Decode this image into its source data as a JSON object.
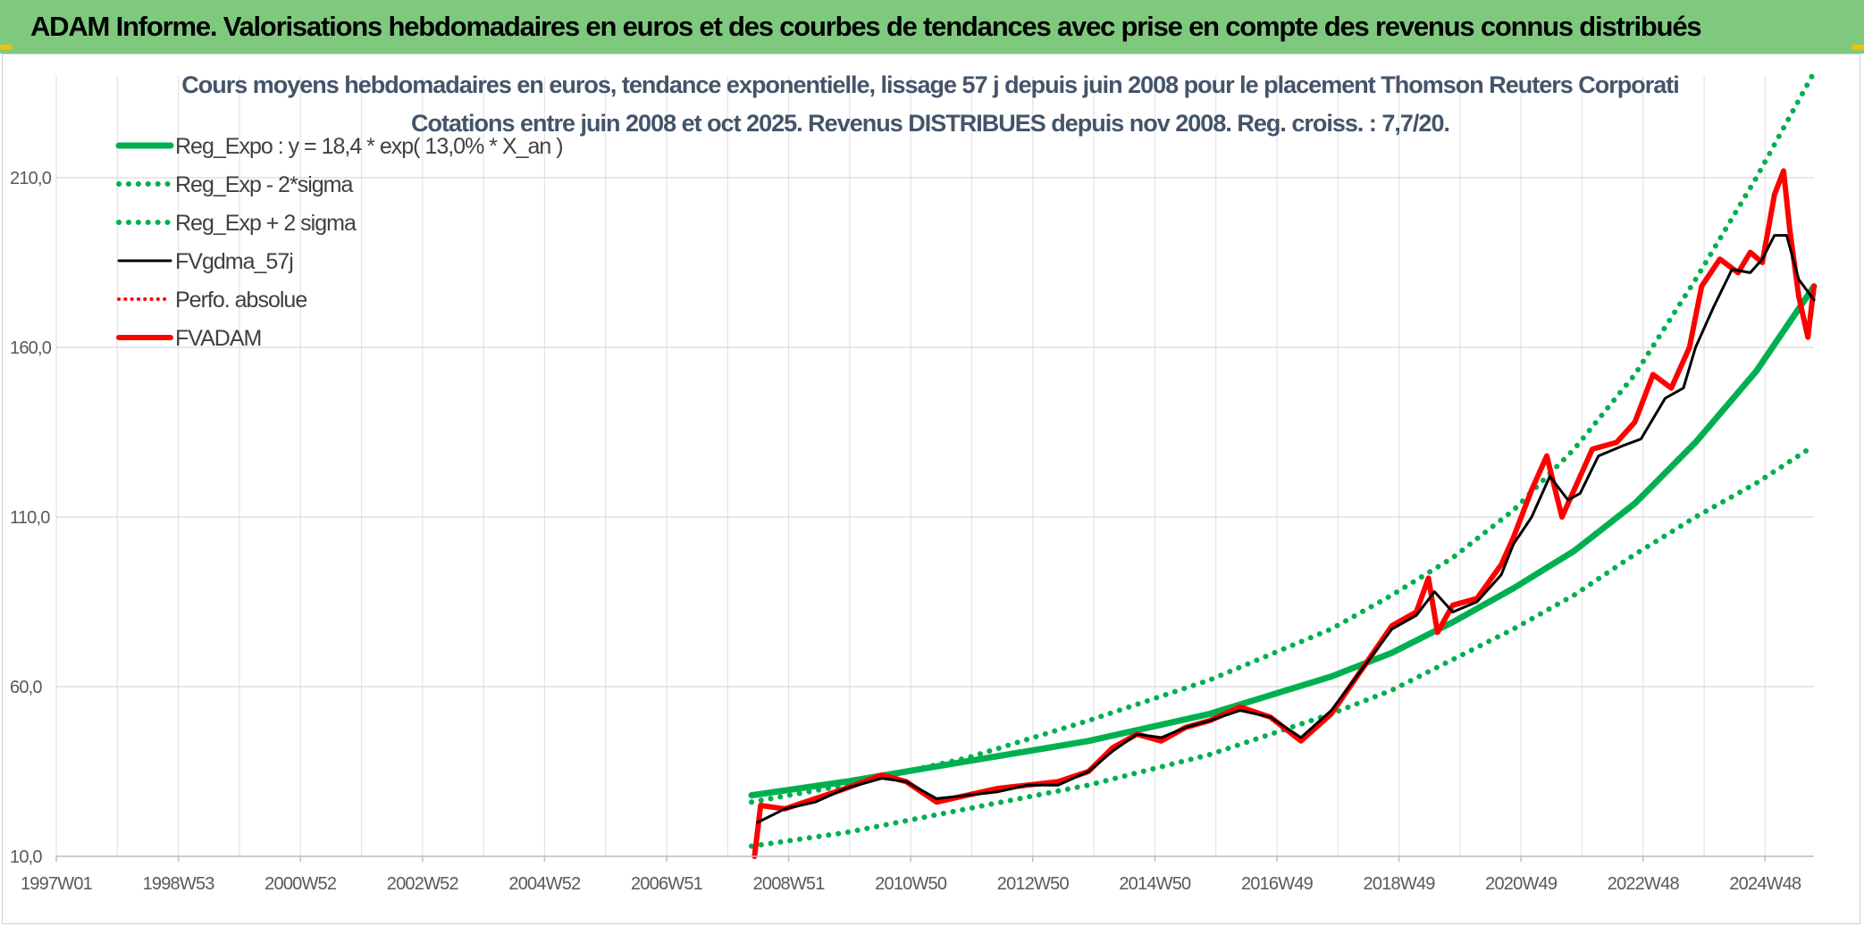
{
  "banner": {
    "title": "ADAM Informe. Valorisations hebdomadaires en euros et des courbes de tendances avec prise en compte des revenus connus distribués",
    "color": "#7fc97f"
  },
  "chart_data": {
    "type": "line",
    "title": "Cours moyens hebdomadaires en euros, tendance exponentielle, lissage 57 j depuis juin 2008 pour le placement Thomson Reuters Corporati",
    "subtitle": "Cotations entre juin 2008 et oct 2025. Revenus DISTRIBUES depuis nov 2008. Reg. croiss. : 7,7/20.",
    "xlabel": "",
    "ylabel": "",
    "x_ticks": [
      "1997W01",
      "1998W53",
      "2000W52",
      "2002W52",
      "2004W52",
      "2006W51",
      "2008W51",
      "2010W50",
      "2012W50",
      "2014W50",
      "2016W49",
      "2018W49",
      "2020W49",
      "2022W48",
      "2024W48"
    ],
    "x_range": [
      1997.0,
      2025.95
    ],
    "y_ticks": [
      "10,0",
      "60,0",
      "110,0",
      "160,0",
      "210,0"
    ],
    "ylim": [
      10,
      240
    ],
    "grid": true,
    "legend_position": "top-left",
    "series": [
      {
        "name": "Reg_Expo : y = 18,4 * exp( 13,0% *  X_an )",
        "style": "solid",
        "color": "#00b050",
        "width": 7,
        "x": [
          2008.45,
          2010.0,
          2012.0,
          2014.0,
          2016.0,
          2018.0,
          2019.0,
          2020.0,
          2021.0,
          2022.0,
          2023.0,
          2024.0,
          2025.0,
          2025.95
        ],
        "y": [
          28,
          32,
          38,
          44,
          52,
          63,
          70,
          79,
          89,
          100,
          114,
          132,
          153,
          178
        ]
      },
      {
        "name": "Reg_Exp - 2*sigma",
        "style": "dotted",
        "color": "#00b050",
        "width": 6,
        "x": [
          2008.45,
          2010.0,
          2012.0,
          2014.0,
          2016.0,
          2018.0,
          2019.0,
          2020.0,
          2021.0,
          2022.0,
          2023.0,
          2024.0,
          2025.0,
          2025.95
        ],
        "y": [
          13,
          17,
          24,
          31,
          40,
          52,
          59,
          68,
          77,
          87,
          99,
          110,
          120,
          131
        ]
      },
      {
        "name": "Reg_Exp + 2 sigma",
        "style": "dotted",
        "color": "#00b050",
        "width": 6,
        "x": [
          2008.45,
          2010.0,
          2012.0,
          2014.0,
          2016.0,
          2018.0,
          2019.0,
          2020.0,
          2021.0,
          2022.0,
          2023.0,
          2024.0,
          2025.0,
          2025.95
        ],
        "y": [
          26,
          31,
          39,
          50,
          62,
          77,
          87,
          98,
          112,
          130,
          152,
          180,
          210,
          241
        ]
      },
      {
        "name": "FVgdma_57j",
        "style": "solid",
        "color": "#000000",
        "width": 3,
        "x": [
          2008.55,
          2009.0,
          2009.5,
          2010.0,
          2010.6,
          2011.0,
          2011.5,
          2012.0,
          2012.5,
          2013.0,
          2013.5,
          2014.0,
          2014.4,
          2014.8,
          2015.2,
          2015.6,
          2016.0,
          2016.5,
          2017.0,
          2017.5,
          2018.0,
          2018.5,
          2019.0,
          2019.4,
          2019.7,
          2020.0,
          2020.4,
          2020.8,
          2021.0,
          2021.3,
          2021.6,
          2021.9,
          2022.1,
          2022.4,
          2022.8,
          2023.1,
          2023.5,
          2023.8,
          2024.0,
          2024.3,
          2024.6,
          2024.9,
          2025.1,
          2025.3,
          2025.5,
          2025.7,
          2025.95
        ],
        "y": [
          20,
          24,
          26,
          30,
          33,
          32,
          27,
          28,
          29,
          31,
          31,
          35,
          41,
          46,
          45,
          48,
          50,
          53,
          51,
          45,
          53,
          65,
          77,
          81,
          88,
          82,
          85,
          93,
          102,
          110,
          122,
          115,
          117,
          128,
          131,
          133,
          145,
          148,
          160,
          172,
          183,
          182,
          186,
          193,
          193,
          180,
          174
        ]
      },
      {
        "name": "Perfo. absolue",
        "style": "dotted",
        "color": "#ff0000",
        "width": 4,
        "x": [
          2008.5,
          2008.6,
          2009.0,
          2009.5,
          2010.0,
          2010.6,
          2011.0,
          2011.5,
          2012.0,
          2012.5,
          2013.0,
          2013.5,
          2014.0,
          2014.4,
          2014.8,
          2015.2,
          2015.6,
          2016.0,
          2016.5,
          2017.0,
          2017.5,
          2018.0,
          2018.5,
          2019.0,
          2019.4,
          2019.6,
          2019.75,
          2020.0,
          2020.4,
          2020.8,
          2021.0,
          2021.3,
          2021.55,
          2021.8,
          2022.0,
          2022.3,
          2022.7,
          2023.0,
          2023.3,
          2023.6,
          2023.9,
          2024.1,
          2024.4,
          2024.7,
          2024.9,
          2025.1,
          2025.3,
          2025.45,
          2025.55,
          2025.7,
          2025.85,
          2025.95
        ],
        "y": [
          10,
          25,
          24,
          27,
          30,
          34,
          32,
          26,
          28,
          30,
          31,
          32,
          35,
          42,
          46,
          44,
          48,
          50,
          54,
          51,
          44,
          52,
          65,
          78,
          82,
          92,
          76,
          84,
          86,
          96,
          104,
          118,
          128,
          110,
          118,
          130,
          132,
          138,
          152,
          148,
          160,
          178,
          186,
          182,
          188,
          185,
          205,
          212,
          195,
          175,
          163,
          178
        ]
      },
      {
        "name": "FVADAM",
        "style": "solid",
        "color": "#ff0000",
        "width": 6,
        "x": [
          2008.5,
          2008.6,
          2009.0,
          2009.5,
          2010.0,
          2010.6,
          2011.0,
          2011.5,
          2012.0,
          2012.5,
          2013.0,
          2013.5,
          2014.0,
          2014.4,
          2014.8,
          2015.2,
          2015.6,
          2016.0,
          2016.5,
          2017.0,
          2017.5,
          2018.0,
          2018.5,
          2019.0,
          2019.4,
          2019.6,
          2019.75,
          2020.0,
          2020.4,
          2020.8,
          2021.0,
          2021.3,
          2021.55,
          2021.8,
          2022.0,
          2022.3,
          2022.7,
          2023.0,
          2023.3,
          2023.6,
          2023.9,
          2024.1,
          2024.4,
          2024.7,
          2024.9,
          2025.1,
          2025.3,
          2025.45,
          2025.55,
          2025.7,
          2025.85,
          2025.95
        ],
        "y": [
          10,
          25,
          24,
          27,
          30,
          34,
          32,
          26,
          28,
          30,
          31,
          32,
          35,
          42,
          46,
          44,
          48,
          50,
          54,
          51,
          44,
          52,
          65,
          78,
          82,
          92,
          76,
          84,
          86,
          96,
          104,
          118,
          128,
          110,
          118,
          130,
          132,
          138,
          152,
          148,
          160,
          178,
          186,
          182,
          188,
          185,
          205,
          212,
          195,
          175,
          163,
          178
        ]
      }
    ]
  }
}
